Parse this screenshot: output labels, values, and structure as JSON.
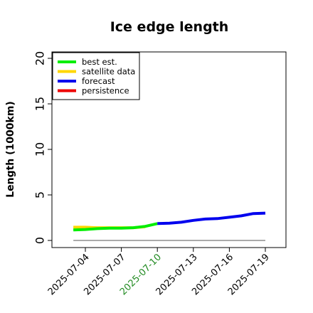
{
  "chart_data": {
    "type": "line",
    "title": "Ice edge length",
    "xlabel": "",
    "ylabel": "Length (1000km)",
    "ylim": [
      0,
      20
    ],
    "yticks": [
      0,
      5,
      10,
      15,
      20
    ],
    "xlim": [
      "2025-07-01",
      "2025-07-20"
    ],
    "xticks": [
      "2025-07-04",
      "2025-07-07",
      "2025-07-10",
      "2025-07-13",
      "2025-07-16",
      "2025-07-19"
    ],
    "highlighted_xtick": "2025-07-10",
    "grid": false,
    "legend_position": "top-left",
    "reference_line": {
      "y": 0,
      "color": "#555555"
    },
    "series": [
      {
        "name": "best est.",
        "color": "#00ee00",
        "x": [
          "2025-07-03",
          "2025-07-04",
          "2025-07-05",
          "2025-07-06",
          "2025-07-07",
          "2025-07-08",
          "2025-07-09",
          "2025-07-10"
        ],
        "y": [
          1.15,
          1.2,
          1.3,
          1.35,
          1.35,
          1.4,
          1.55,
          1.85
        ]
      },
      {
        "name": "satellite data",
        "color": "#ffd700",
        "x": [
          "2025-07-03",
          "2025-07-04",
          "2025-07-05",
          "2025-07-06",
          "2025-07-07",
          "2025-07-08",
          "2025-07-09"
        ],
        "y": [
          1.45,
          1.45,
          1.4,
          1.4,
          1.4,
          1.4,
          1.5
        ]
      },
      {
        "name": "forecast",
        "color": "#0000ee",
        "x": [
          "2025-07-10",
          "2025-07-11",
          "2025-07-12",
          "2025-07-13",
          "2025-07-14",
          "2025-07-15",
          "2025-07-16",
          "2025-07-17",
          "2025-07-18",
          "2025-07-19"
        ],
        "y": [
          1.85,
          1.9,
          2.0,
          2.2,
          2.35,
          2.4,
          2.55,
          2.7,
          2.95,
          3.0
        ]
      },
      {
        "name": "persistence",
        "color": "#ee0000",
        "x": [],
        "y": []
      }
    ]
  }
}
